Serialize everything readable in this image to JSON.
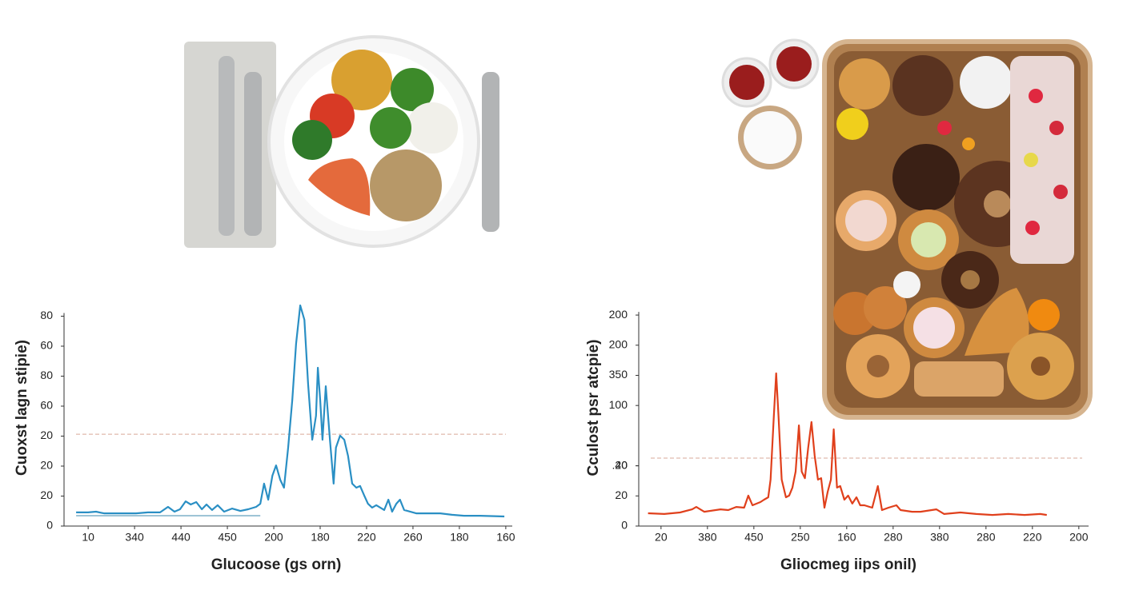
{
  "chart_data": [
    {
      "type": "line",
      "xlabel": "Glucoose (gs orn)",
      "ylabel": "Cuoxst lagn stipie)",
      "xlim": [
        -0.52,
        9.14
      ],
      "ylim": [
        0,
        150
      ],
      "xticks": [
        {
          "value": 0,
          "label": "10"
        },
        {
          "value": 1,
          "label": "340"
        },
        {
          "value": 2,
          "label": "440"
        },
        {
          "value": 3,
          "label": "450"
        },
        {
          "value": 4,
          "label": "200"
        },
        {
          "value": 5,
          "label": "180"
        },
        {
          "value": 6,
          "label": "220"
        },
        {
          "value": 7,
          "label": "260"
        },
        {
          "value": 8,
          "label": "180"
        },
        {
          "value": 9,
          "label": "160"
        }
      ],
      "yticks": [
        0,
        20,
        {
          "value": 40,
          "label": "20"
        },
        {
          "value": 60,
          "label": "20"
        },
        {
          "value": 80,
          "label": "60"
        },
        {
          "value": 100,
          "label": "80"
        },
        {
          "value": 120,
          "label": "60"
        },
        {
          "value": 140,
          "label": "80"
        }
      ],
      "hline": {
        "value": 61.3,
        "color": "#d9a898"
      },
      "series": [
        {
          "color": "#2a8fc4",
          "x": [
            -0.26,
            0,
            0.17,
            0.34,
            0.69,
            1.03,
            1.29,
            1.55,
            1.72,
            1.86,
            1.98,
            2.1,
            2.21,
            2.33,
            2.45,
            2.55,
            2.67,
            2.79,
            2.93,
            3.1,
            3.28,
            3.45,
            3.62,
            3.71,
            3.79,
            3.88,
            3.97,
            4.05,
            4.14,
            4.22,
            4.31,
            4.4,
            4.48,
            4.57,
            4.66,
            4.74,
            4.83,
            4.91,
            4.95,
            5,
            5.05,
            5.12,
            5.21,
            5.29,
            5.34,
            5.43,
            5.52,
            5.6,
            5.69,
            5.78,
            5.86,
            5.95,
            6.03,
            6.12,
            6.21,
            6.38,
            6.47,
            6.55,
            6.64,
            6.72,
            6.81,
            7.07,
            7.59,
            7.84,
            8.1,
            8.45,
            8.97
          ],
          "values": [
            9.1,
            9.1,
            9.6,
            8.5,
            8.5,
            8.5,
            9.1,
            9.1,
            12.8,
            9.6,
            11.2,
            16.5,
            14.4,
            16,
            11.2,
            14.4,
            10.7,
            13.9,
            9.6,
            11.7,
            10.1,
            11.2,
            12.8,
            14.9,
            28.3,
            17.6,
            33.6,
            40.5,
            30.9,
            25.6,
            52.3,
            84.3,
            121.6,
            147.2,
            137.6,
            94.9,
            57.6,
            73.6,
            105.6,
            84.3,
            57.6,
            93.3,
            57.6,
            28.3,
            52.3,
            60.3,
            57.6,
            46.9,
            28.3,
            25.6,
            26.7,
            20.3,
            14.9,
            12.3,
            13.9,
            10.7,
            17.6,
            9.6,
            14.9,
            17.6,
            10.7,
            8.5,
            8.5,
            7.5,
            6.9,
            6.9,
            6.4
          ]
        },
        {
          "color": "#86b6cc",
          "x": [
            -0.26,
            3.71
          ],
          "values": [
            6.9,
            6.9
          ]
        }
      ]
    },
    {
      "type": "line",
      "xlabel": "Gliocmeg  iips onil)",
      "ylabel": "Cculost psr atcpie)",
      "xlim": [
        -0.48,
        9.21
      ],
      "ylim": [
        0,
        141
      ],
      "xticks": [
        {
          "value": 0,
          "label": "20"
        },
        {
          "value": 1,
          "label": "380"
        },
        {
          "value": 2,
          "label": "450"
        },
        {
          "value": 3,
          "label": "250"
        },
        {
          "value": 4,
          "label": "160"
        },
        {
          "value": 5,
          "label": "280"
        },
        {
          "value": 6,
          "label": "380"
        },
        {
          "value": 7,
          "label": "280"
        },
        {
          "value": 8,
          "label": "220"
        },
        {
          "value": 9,
          "label": "200"
        }
      ],
      "yticks": [
        0,
        20,
        {
          "value": 40,
          "label": ".20"
        },
        40,
        {
          "value": 80,
          "label": "100"
        },
        {
          "value": 100,
          "label": "350"
        },
        {
          "value": 120,
          "label": "200"
        },
        {
          "value": 140,
          "label": "200"
        }
      ],
      "hline": {
        "value": 45.1,
        "color": "#d9a898"
      },
      "series": [
        {
          "color": "#e0401c",
          "x": [
            -0.28,
            0.07,
            0.41,
            0.67,
            0.76,
            0.93,
            1.28,
            1.45,
            1.62,
            1.79,
            1.88,
            1.97,
            2.14,
            2.22,
            2.31,
            2.36,
            2.43,
            2.48,
            2.53,
            2.6,
            2.69,
            2.76,
            2.83,
            2.9,
            2.97,
            3.03,
            3.1,
            3.17,
            3.24,
            3.31,
            3.38,
            3.45,
            3.52,
            3.59,
            3.66,
            3.72,
            3.79,
            3.86,
            3.95,
            4.03,
            4.12,
            4.21,
            4.29,
            4.38,
            4.55,
            4.67,
            4.76,
            4.9,
            5.07,
            5.16,
            5.41,
            5.59,
            5.93,
            6.1,
            6.45,
            6.79,
            7.14,
            7.48,
            7.83,
            8.17,
            8.31
          ],
          "values": [
            8.5,
            8,
            9,
            11.1,
            12.7,
            9.5,
            11.1,
            10.6,
            12.7,
            12.2,
            20.2,
            13.8,
            15.9,
            17.5,
            19.1,
            30.8,
            73.2,
            101.3,
            73.2,
            30.8,
            19.1,
            20.2,
            25.5,
            36.1,
            66.8,
            36.1,
            31.8,
            52,
            69,
            46.7,
            30.8,
            31.8,
            12.2,
            22.8,
            30.8,
            64.2,
            25.5,
            26.5,
            17.5,
            20.2,
            14.9,
            19.1,
            13.8,
            13.8,
            12.2,
            26.5,
            10.6,
            12.2,
            13.8,
            10.6,
            9.5,
            9.5,
            11.1,
            8,
            9,
            8,
            7.4,
            8,
            7.4,
            8,
            7.4
          ]
        }
      ]
    }
  ]
}
